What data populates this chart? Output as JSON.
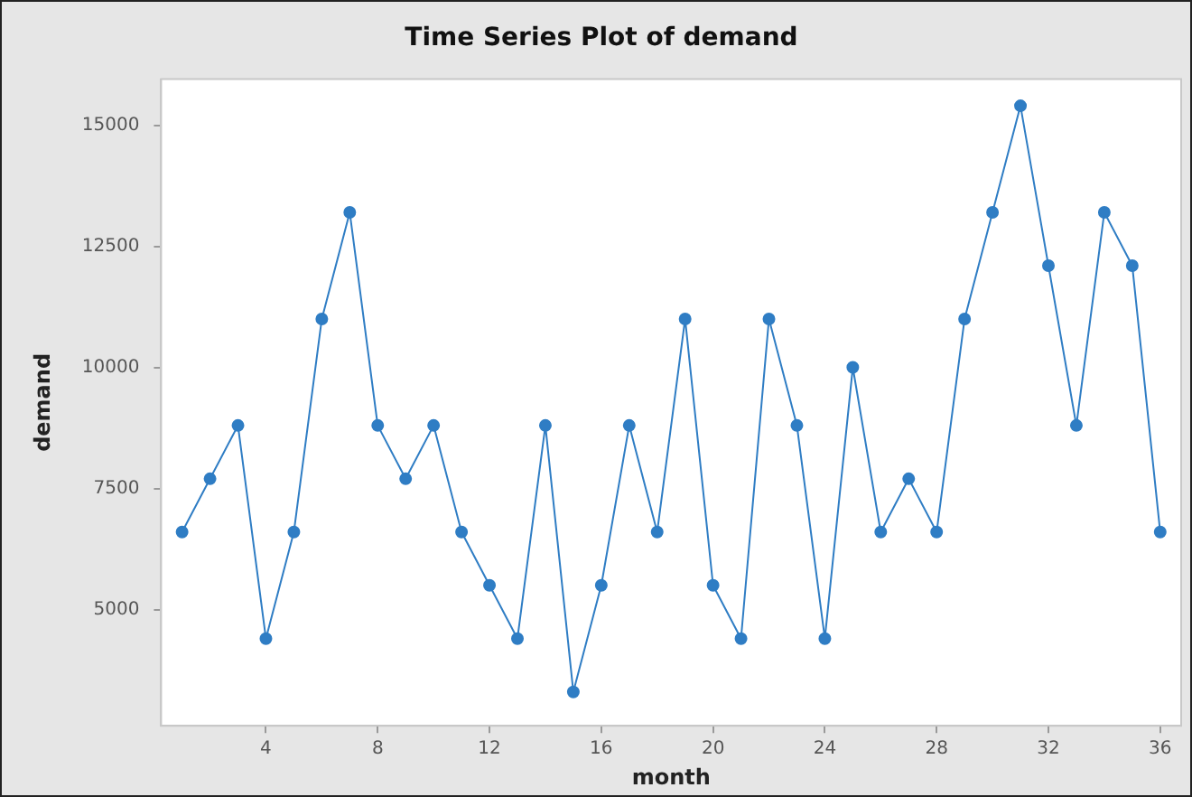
{
  "chart_data": {
    "type": "line",
    "title": "Time Series Plot of demand",
    "xlabel": "month",
    "ylabel": "demand",
    "x": [
      1,
      2,
      3,
      4,
      5,
      6,
      7,
      8,
      9,
      10,
      11,
      12,
      13,
      14,
      15,
      16,
      17,
      18,
      19,
      20,
      21,
      22,
      23,
      24,
      25,
      26,
      27,
      28,
      29,
      30,
      31,
      32,
      33,
      34,
      35,
      36
    ],
    "series": [
      {
        "color": "#2f7dc4",
        "values": [
          6600,
          7700,
          8800,
          4400,
          6600,
          11000,
          13200,
          8800,
          7700,
          8800,
          6600,
          5500,
          4400,
          8800,
          3300,
          5500,
          8800,
          6600,
          11000,
          5500,
          4400,
          11000,
          8800,
          4400,
          10000,
          6600,
          7700,
          6600,
          11000,
          13200,
          15400,
          12100,
          8800,
          13200,
          12100,
          6600
        ]
      }
    ],
    "xlim": [
      0.25,
      36.75
    ],
    "xticks": [
      4,
      8,
      12,
      16,
      20,
      24,
      28,
      32,
      36
    ],
    "ylim": [
      2600,
      15950
    ],
    "yticks": [
      5000,
      7500,
      10000,
      12500,
      15000
    ],
    "grid": false,
    "legend": false,
    "marker": "circle",
    "line_style": "solid"
  }
}
